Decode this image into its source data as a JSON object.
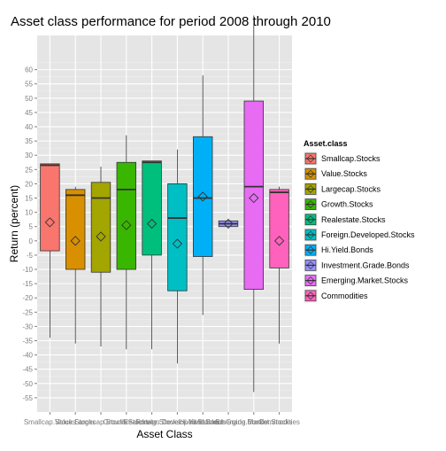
{
  "chart_data": {
    "type": "boxplot",
    "title": "Asset class performance for period 2008 through 2010",
    "xlabel": "Asset Class",
    "ylabel": "Return (percent)",
    "ylim": [
      -60,
      72
    ],
    "yticks": [
      -55,
      -50,
      -45,
      -40,
      -35,
      -30,
      -25,
      -20,
      -15,
      -10,
      -5,
      0,
      5,
      10,
      15,
      20,
      25,
      30,
      35,
      40,
      45,
      50,
      55,
      60
    ],
    "grid": true,
    "background": "#e5e5e5",
    "legend": {
      "title": "Asset.class",
      "position": "right"
    },
    "categories": [
      "Smallcap.Stocks",
      "Value.Stocks",
      "Largecap.Stocks",
      "Growth.Stocks",
      "Realestate.Stocks",
      "Foreign.Developed.Stocks",
      "Hi.Yield.Bonds",
      "Investment.Grade.Bonds",
      "Emerging.Market.Stocks",
      "Commodities"
    ],
    "series": [
      {
        "name": "Smallcap.Stocks",
        "color": "#f8766d",
        "min": -34,
        "q1": -3.5,
        "median": 26.5,
        "q3": 27,
        "max": 27,
        "mean": 6.5
      },
      {
        "name": "Value.Stocks",
        "color": "#d89000",
        "min": -36,
        "q1": -10,
        "median": 16,
        "q3": 18,
        "max": 19,
        "mean": 0
      },
      {
        "name": "Largecap.Stocks",
        "color": "#a3a500",
        "min": -37,
        "q1": -11,
        "median": 15,
        "q3": 20.5,
        "max": 26,
        "mean": 1.5
      },
      {
        "name": "Growth.Stocks",
        "color": "#39b600",
        "min": -38,
        "q1": -10,
        "median": 18,
        "q3": 27.5,
        "max": 37,
        "mean": 5.5
      },
      {
        "name": "Realestate.Stocks",
        "color": "#00bf7d",
        "min": -38,
        "q1": -5,
        "median": 27.5,
        "q3": 28,
        "max": 28,
        "mean": 6
      },
      {
        "name": "Foreign.Developed.Stocks",
        "color": "#00bfc4",
        "min": -43,
        "q1": -17.5,
        "median": 8,
        "q3": 20,
        "max": 32,
        "mean": -1
      },
      {
        "name": "Hi.Yield.Bonds",
        "color": "#00b0f6",
        "min": -26,
        "q1": -5.5,
        "median": 15,
        "q3": 36.5,
        "max": 58,
        "mean": 15.5
      },
      {
        "name": "Investment.Grade.Bonds",
        "color": "#9590ff",
        "min": 5,
        "q1": 5,
        "median": 6,
        "q3": 7,
        "max": 7,
        "mean": 6
      },
      {
        "name": "Emerging.Market.Stocks",
        "color": "#e76bf3",
        "min": -53,
        "q1": -17,
        "median": 19,
        "q3": 49,
        "max": 79,
        "mean": 15
      },
      {
        "name": "Commodities",
        "color": "#ff62bc",
        "min": -36,
        "q1": -9.5,
        "median": 17,
        "q3": 18,
        "max": 19,
        "mean": 0
      }
    ]
  }
}
